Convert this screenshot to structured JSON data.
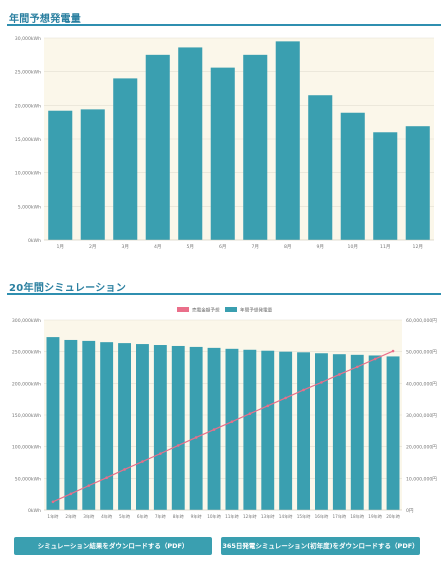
{
  "sections": {
    "annual_title": "年間予想発電量",
    "twenty_year_title": "20年間シミュレーション"
  },
  "buttons": {
    "download_result": "シミュレーション結果をダウンロードする（PDF）",
    "download_365": "365日発電シミュレーション(初年度)をダウンロードする（PDF）"
  },
  "colors": {
    "bar": "#3a9fb0",
    "line": "#ea6f8a",
    "plot_bg": "#fbf7ea",
    "title": "#2a7fa0"
  },
  "chart_data": [
    {
      "type": "bar",
      "categories": [
        "1月",
        "2月",
        "3月",
        "4月",
        "5月",
        "6月",
        "7月",
        "8月",
        "9月",
        "10月",
        "11月",
        "12月"
      ],
      "values": [
        19200,
        19400,
        24000,
        27500,
        28600,
        25600,
        27500,
        29500,
        21500,
        18900,
        16000,
        16900
      ],
      "yticks": [
        "0kWh",
        "5,000kWh",
        "10,000kWh",
        "15,000kWh",
        "20,000kWh",
        "25,000kWh",
        "30,000kWh"
      ],
      "ylim": [
        0,
        30000
      ],
      "grid": true
    },
    {
      "type": "bar+line",
      "categories": [
        "1年時",
        "2年時",
        "3年時",
        "4年時",
        "5年時",
        "6年時",
        "7年時",
        "8年時",
        "9年時",
        "10年時",
        "11年時",
        "12年時",
        "13年時",
        "14年時",
        "15年時",
        "16年時",
        "17年時",
        "18年時",
        "19年時",
        "20年時"
      ],
      "legend": [
        "売電金額予想",
        "年間予想発電量"
      ],
      "series": [
        {
          "name": "年間予想発電量",
          "type": "bar",
          "axis": "left",
          "values": [
            273000,
            268500,
            267000,
            265000,
            263500,
            262000,
            260500,
            259000,
            257500,
            256000,
            254500,
            253000,
            251500,
            250000,
            249000,
            247500,
            246000,
            245000,
            244000,
            242500
          ]
        },
        {
          "name": "売電金額予想",
          "type": "line",
          "axis": "right",
          "values": [
            2600000,
            5100000,
            7700000,
            10200000,
            12800000,
            15300000,
            17800000,
            20400000,
            22900000,
            25400000,
            27900000,
            30400000,
            32900000,
            35400000,
            37900000,
            40300000,
            42800000,
            45200000,
            47700000,
            50200000
          ]
        }
      ],
      "yticks_left": [
        "0kWh",
        "50,000kWh",
        "100,000kWh",
        "150,000kWh",
        "200,000kWh",
        "250,000kWh",
        "300,000kWh"
      ],
      "yticks_right": [
        "0円",
        "10,000,000円",
        "20,000,000円",
        "30,000,000円",
        "40,000,000円",
        "50,000,000円",
        "60,000,000円"
      ],
      "ylim_left": [
        0,
        300000
      ],
      "ylim_right": [
        0,
        60000000
      ],
      "legend_position": "top-center",
      "grid": true
    }
  ]
}
